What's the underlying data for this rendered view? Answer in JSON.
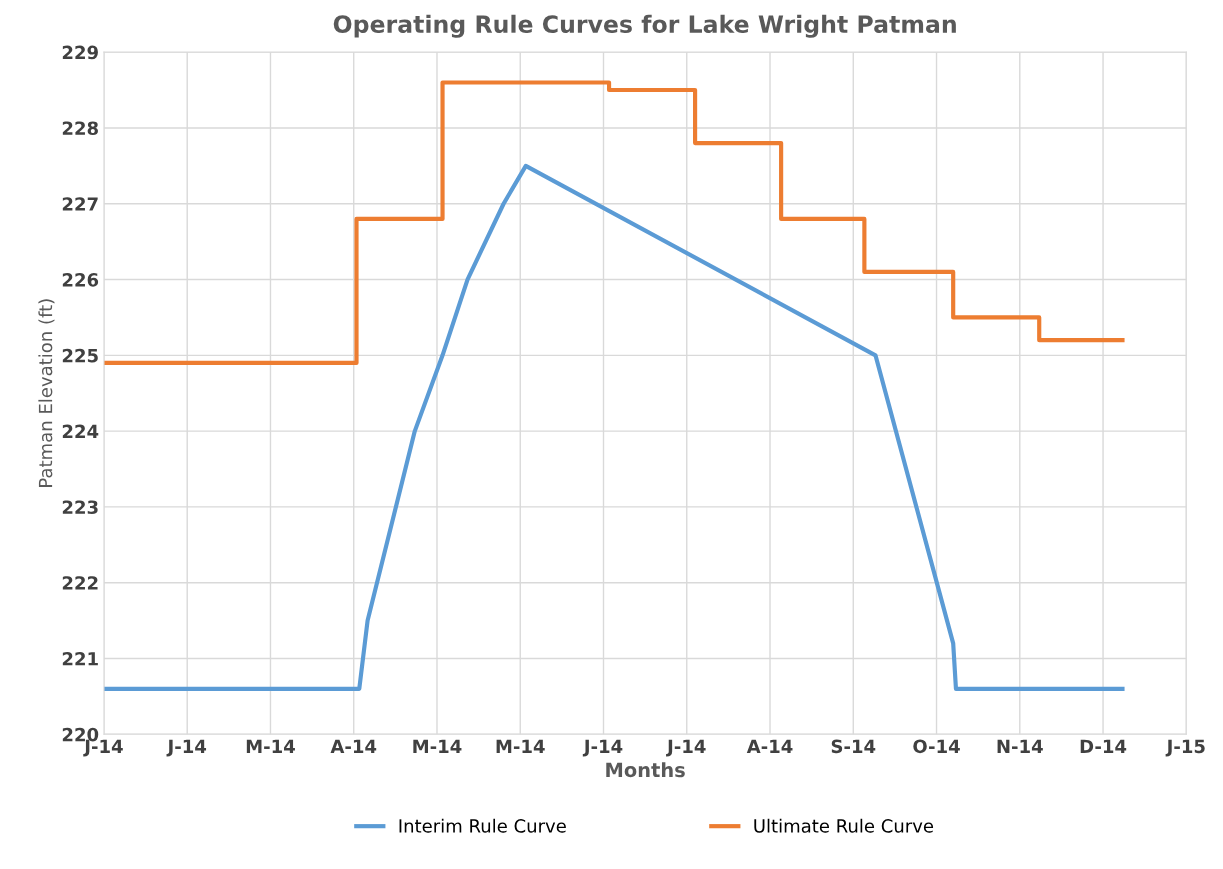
{
  "chart_data": {
    "type": "line",
    "title": "Operating Rule Curves for Lake Wright Patman",
    "xlabel": "Months",
    "ylabel": "Patman Elevation (ft)",
    "xlim": [
      "2014-01-01",
      "2015-01-26"
    ],
    "xticks": [
      {
        "value": "2014-01-01",
        "label": "J-14"
      },
      {
        "value": "2014-01-31",
        "label": "J-14"
      },
      {
        "value": "2014-03-02",
        "label": "M-14"
      },
      {
        "value": "2014-04-01",
        "label": "A-14"
      },
      {
        "value": "2014-05-01",
        "label": "M-14"
      },
      {
        "value": "2014-05-31",
        "label": "M-14"
      },
      {
        "value": "2014-06-30",
        "label": "J-14"
      },
      {
        "value": "2014-07-30",
        "label": "J-14"
      },
      {
        "value": "2014-08-29",
        "label": "A-14"
      },
      {
        "value": "2014-09-28",
        "label": "S-14"
      },
      {
        "value": "2014-10-28",
        "label": "O-14"
      },
      {
        "value": "2014-11-27",
        "label": "N-14"
      },
      {
        "value": "2014-12-27",
        "label": "D-14"
      },
      {
        "value": "2015-01-26",
        "label": "J-15"
      }
    ],
    "ylim": [
      220,
      229
    ],
    "yticks": [
      220,
      221,
      222,
      223,
      224,
      225,
      226,
      227,
      228,
      229
    ],
    "grid": true,
    "legend": "bottom",
    "line_style": "solid",
    "marker": "none",
    "series": [
      {
        "name": "Interim Rule Curve",
        "color": "#5b9bd5",
        "x": [
          "2014-01-01",
          "2014-04-03",
          "2014-04-06",
          "2014-04-23",
          "2014-05-03",
          "2014-05-12",
          "2014-05-25",
          "2014-06-02",
          "2014-10-06",
          "2014-11-03",
          "2014-11-04",
          "2015-01-03"
        ],
        "values": [
          220.6,
          220.6,
          221.5,
          224,
          225,
          226,
          227,
          227.5,
          225,
          221.2,
          220.6,
          220.6
        ]
      },
      {
        "name": "Ultimate Rule Curve",
        "type": "step",
        "color": "#ed7d31",
        "x": [
          "2014-01-01",
          "2014-04-02",
          "2014-05-03",
          "2014-07-02",
          "2014-08-02",
          "2014-09-02",
          "2014-10-02",
          "2014-11-03",
          "2014-12-04",
          "2015-01-03"
        ],
        "values": [
          224.9,
          226.8,
          228.6,
          228.5,
          227.8,
          226.8,
          226.1,
          225.5,
          225.2,
          225.2
        ]
      }
    ]
  }
}
